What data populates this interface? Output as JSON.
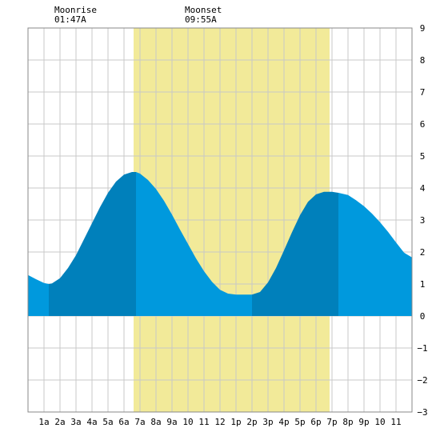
{
  "chart_data": {
    "type": "area",
    "title": "",
    "xlabel": "",
    "ylabel": "",
    "xlim": [
      0,
      24
    ],
    "ylim": [
      -3,
      9
    ],
    "grid": true,
    "x_tick_labels": [
      "1a",
      "2a",
      "3a",
      "4a",
      "5a",
      "6a",
      "7a",
      "8a",
      "9a",
      "10",
      "11",
      "12",
      "1p",
      "2p",
      "3p",
      "4p",
      "5p",
      "6p",
      "7p",
      "8p",
      "9p",
      "10",
      "11"
    ],
    "y_ticks": [
      -3,
      -2,
      -1,
      0,
      1,
      2,
      3,
      4,
      5,
      6,
      7,
      8,
      9
    ],
    "daylight": {
      "start": 6.6,
      "end": 18.85
    },
    "moon": {
      "moonrise": {
        "label": "Moonrise",
        "time": "01:47A",
        "hour": 1.78
      },
      "moonset": {
        "label": "Moonset",
        "time": "09:55A",
        "hour": 9.92
      }
    },
    "tide_extremes": [
      {
        "type": "low",
        "hour": 1.3,
        "height": 1.0
      },
      {
        "type": "high",
        "hour": 6.75,
        "height": 4.5
      },
      {
        "type": "low",
        "hour": 14.0,
        "height": 0.67
      },
      {
        "type": "high",
        "hour": 19.4,
        "height": 3.85
      }
    ],
    "series": [
      {
        "x": [
          0,
          0.5,
          1,
          1.3,
          1.5,
          2,
          2.5,
          3,
          3.5,
          4,
          4.5,
          5,
          5.5,
          6,
          6.5,
          6.75,
          7,
          7.5,
          8,
          8.5,
          9,
          9.5,
          10,
          10.5,
          11,
          11.5,
          12,
          12.5,
          13,
          13.5,
          14,
          14.5,
          15,
          15.5,
          16,
          16.5,
          17,
          17.5,
          18,
          18.5,
          19,
          19.4,
          20,
          20.5,
          21,
          21.5,
          22,
          22.5,
          23,
          23.5,
          24
        ],
        "values": [
          1.28,
          1.15,
          1.03,
          1.0,
          1.02,
          1.18,
          1.5,
          1.9,
          2.4,
          2.9,
          3.4,
          3.85,
          4.2,
          4.42,
          4.5,
          4.5,
          4.45,
          4.25,
          3.97,
          3.6,
          3.17,
          2.7,
          2.25,
          1.8,
          1.4,
          1.07,
          0.82,
          0.7,
          0.67,
          0.67,
          0.67,
          0.75,
          1.05,
          1.5,
          2.05,
          2.62,
          3.15,
          3.57,
          3.8,
          3.88,
          3.88,
          3.85,
          3.78,
          3.62,
          3.43,
          3.2,
          2.93,
          2.63,
          2.3,
          1.98,
          1.83
        ]
      }
    ],
    "colors": {
      "daylight": "#f2ea99",
      "tide_light": "#0099dd",
      "tide_dark": "#0080bb",
      "grid": "#c8c8c8"
    }
  }
}
